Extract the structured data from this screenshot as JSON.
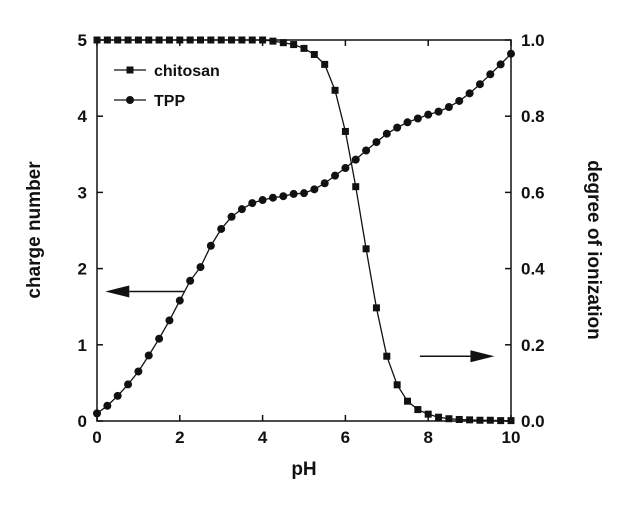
{
  "chart_data": {
    "type": "line",
    "xlabel": "pH",
    "ylabel_left": "charge number",
    "ylabel_right": "degree of ionization",
    "xlim": [
      0,
      10
    ],
    "ylim_left": [
      0,
      5
    ],
    "ylim_right": [
      0,
      1.0
    ],
    "x_ticks": [
      "0",
      "2",
      "4",
      "6",
      "8",
      "10"
    ],
    "y_left_ticks": [
      "0",
      "1",
      "2",
      "3",
      "4",
      "5"
    ],
    "y_right_ticks": [
      "0.0",
      "0.2",
      "0.4",
      "0.6",
      "0.8",
      "1.0"
    ],
    "grid": false,
    "legend_position": "top-left",
    "series": [
      {
        "name": "chitosan",
        "axis": "right",
        "marker": "square",
        "x": [
          0,
          0.25,
          0.5,
          0.75,
          1.0,
          1.25,
          1.5,
          1.75,
          2.0,
          2.25,
          2.5,
          2.75,
          3.0,
          3.25,
          3.5,
          3.75,
          4.0,
          4.25,
          4.5,
          4.75,
          5.0,
          5.25,
          5.5,
          5.75,
          6.0,
          6.25,
          6.5,
          6.75,
          7.0,
          7.25,
          7.5,
          7.75,
          8.0,
          8.25,
          8.5,
          8.75,
          9.0,
          9.25,
          9.5,
          9.75,
          10.0
        ],
        "y": [
          1.0,
          1.0,
          1.0,
          1.0,
          1.0,
          1.0,
          1.0,
          1.0,
          1.0,
          1.0,
          1.0,
          1.0,
          1.0,
          1.0,
          1.0,
          1.0,
          1.0,
          0.997,
          0.993,
          0.988,
          0.978,
          0.962,
          0.936,
          0.868,
          0.76,
          0.615,
          0.452,
          0.297,
          0.17,
          0.095,
          0.052,
          0.03,
          0.018,
          0.01,
          0.006,
          0.004,
          0.003,
          0.002,
          0.002,
          0.001,
          0.001
        ]
      },
      {
        "name": "TPP",
        "axis": "left",
        "marker": "circle",
        "x": [
          0,
          0.25,
          0.5,
          0.75,
          1.0,
          1.25,
          1.5,
          1.75,
          2.0,
          2.25,
          2.5,
          2.75,
          3.0,
          3.25,
          3.5,
          3.75,
          4.0,
          4.25,
          4.5,
          4.75,
          5.0,
          5.25,
          5.5,
          5.75,
          6.0,
          6.25,
          6.5,
          6.75,
          7.0,
          7.25,
          7.5,
          7.75,
          8.0,
          8.25,
          8.5,
          8.75,
          9.0,
          9.25,
          9.5,
          9.75,
          10.0
        ],
        "y": [
          0.1,
          0.2,
          0.33,
          0.48,
          0.65,
          0.86,
          1.08,
          1.32,
          1.58,
          1.84,
          2.02,
          2.3,
          2.52,
          2.68,
          2.78,
          2.86,
          2.9,
          2.93,
          2.95,
          2.98,
          2.99,
          3.04,
          3.12,
          3.22,
          3.32,
          3.43,
          3.55,
          3.66,
          3.77,
          3.85,
          3.92,
          3.97,
          4.02,
          4.06,
          4.12,
          4.2,
          4.3,
          4.42,
          4.55,
          4.68,
          4.82
        ]
      }
    ],
    "annotations": [
      {
        "type": "arrow",
        "direction": "left",
        "from": [
          2.1,
          1.7
        ],
        "to": [
          0.2,
          1.7
        ]
      },
      {
        "type": "arrow",
        "direction": "right",
        "from": [
          7.8,
          0.85
        ],
        "to": [
          9.6,
          0.85
        ]
      }
    ]
  }
}
